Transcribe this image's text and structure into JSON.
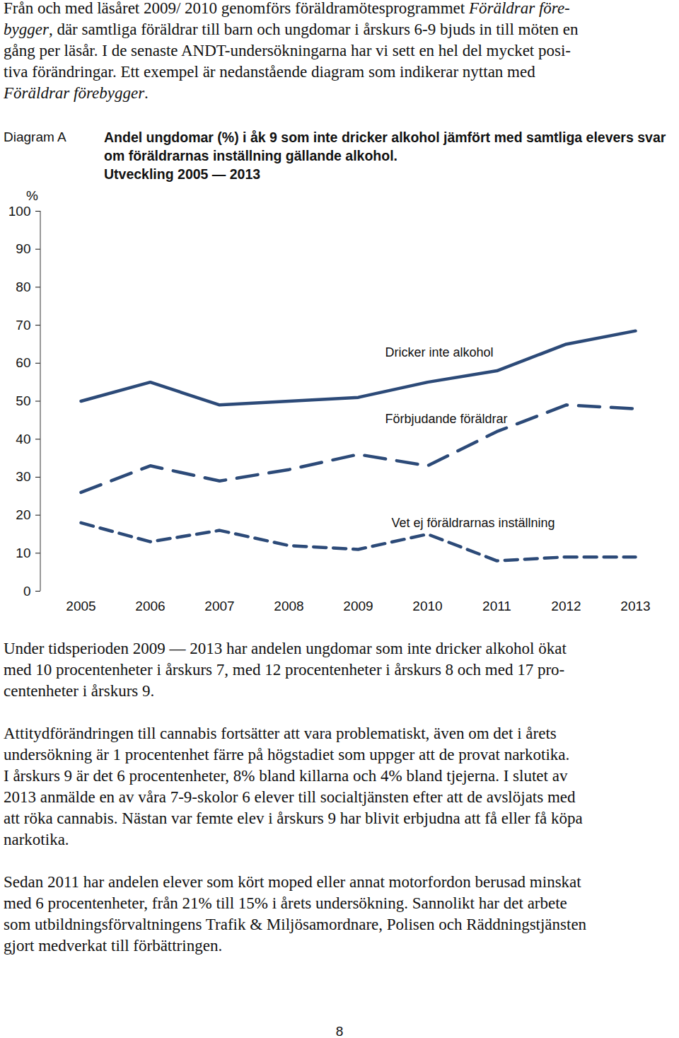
{
  "page": {
    "paragraphs_before": [
      [
        [
          {
            "text": "Från och med läsåret 2009/ 2010 genomförs föräldramötesprogrammet "
          },
          {
            "text": "Föräldrar före-",
            "italic": true
          }
        ],
        [
          {
            "text": "bygger",
            "italic": true
          },
          {
            "text": ", där samtliga föräldrar till barn och ungdomar i årskurs 6-9 bjuds in till möten en"
          }
        ],
        [
          {
            "text": "gång per läsår. I de senaste ANDT-undersökningarna har vi sett en hel del mycket posi-"
          }
        ],
        [
          {
            "text": "tiva förändringar. Ett exempel är nedanstående diagram som indikerar nyttan med"
          }
        ],
        [
          {
            "text": "Föräldrar förebygger",
            "italic": true
          },
          {
            "text": "."
          }
        ]
      ]
    ],
    "diagram_label": "Diagram A",
    "paragraphs_after": [
      [
        [
          {
            "text": "Under tidsperioden 2009 — 2013 har andelen ungdomar som inte dricker alkohol ökat"
          }
        ],
        [
          {
            "text": "med 10 procentenheter i årskurs 7, med 12 procentenheter i årskurs 8 och med 17 pro-"
          }
        ],
        [
          {
            "text": "centenheter i årskurs 9."
          }
        ]
      ],
      [
        [
          {
            "text": "Attitydförändringen till cannabis fortsätter att vara problematiskt, även om det i årets"
          }
        ],
        [
          {
            "text": "undersökning är 1 procentenhet färre på högstadiet som uppger att de provat narkotika."
          }
        ],
        [
          {
            "text": "I årskurs 9 är det 6 procentenheter, 8% bland killarna och 4% bland tjejerna. I slutet av"
          }
        ],
        [
          {
            "text": "2013 anmälde en av våra 7-9-skolor 6 elever till socialtjänsten efter att de avslöjats med"
          }
        ],
        [
          {
            "text": "att röka cannabis. Nästan var femte elev i årskurs 9 har blivit erbjudna att få eller få köpa"
          }
        ],
        [
          {
            "text": "narkotika."
          }
        ]
      ],
      [
        [
          {
            "text": "Sedan 2011 har andelen elever som kört moped eller annat motorfordon berusad minskat"
          }
        ],
        [
          {
            "text": "med 6 procentenheter, från 21% till 15% i årets undersökning. Sannolikt har det arbete"
          }
        ],
        [
          {
            "text": "som utbildningsförvaltningens Trafik & Miljösamordnare, Polisen och Räddningstjänsten"
          }
        ],
        [
          {
            "text": "gjort medverkat till förbättringen."
          }
        ]
      ]
    ],
    "page_number": 8
  },
  "chart_data": {
    "type": "line",
    "title": "Andel ungdomar (%) i åk 9 som inte dricker alkohol jämfört med samtliga elevers svar om föräldrarnas inställning gällande alkohol.\nUtveckling 2005 — 2013",
    "y_label": "%",
    "categories": [
      "2005",
      "2006",
      "2007",
      "2008",
      "2009",
      "2010",
      "2011",
      "2012",
      "2013"
    ],
    "series": [
      {
        "name": "Dricker inte alkohol",
        "color": "#2c4a78",
        "line_style": "solid",
        "values": [
          50,
          55,
          49,
          50,
          51,
          55,
          58,
          65,
          68.5
        ]
      },
      {
        "name": "Förbjudande föräldrar",
        "color": "#2c4a78",
        "line_style": "dashed",
        "values": [
          26,
          33,
          29,
          32,
          36,
          33,
          42,
          49,
          48
        ]
      },
      {
        "name": "Vet ej föräldrarnas inställning",
        "color": "#2c4a78",
        "line_style": "short-dashed",
        "values": [
          18,
          13,
          16,
          12,
          11,
          15,
          8,
          9,
          9
        ]
      }
    ],
    "ylim": [
      0,
      100
    ],
    "yticks": [
      0,
      10,
      20,
      30,
      40,
      50,
      60,
      70,
      80,
      90,
      100
    ],
    "grid": false
  }
}
